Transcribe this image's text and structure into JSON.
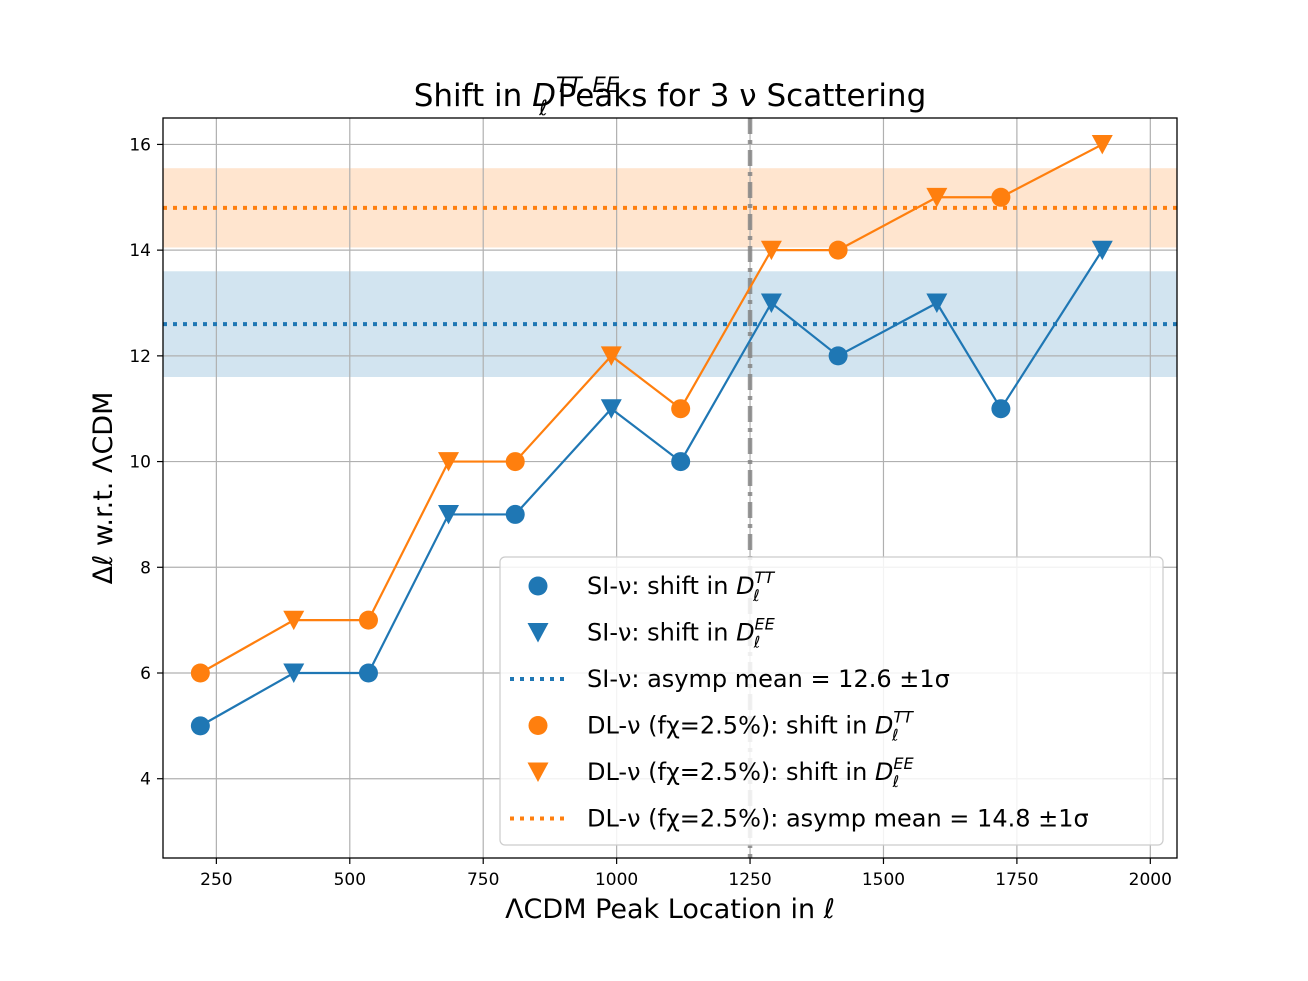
{
  "chart_data": {
    "type": "scatter",
    "title": "Shift in D_ℓ^{TT,EE} Peaks for 3 ν Scattering",
    "title_parts": {
      "pre": "Shift in ",
      "base": "D",
      "sup": "TT, EE",
      "sub": "ℓ",
      "post": " Peaks for 3 ν Scattering"
    },
    "xlabel": "ΛCDM Peak Location in ℓ",
    "ylabel": "Δℓ w.r.t. ΛCDM",
    "xlim": [
      150,
      2050
    ],
    "ylim": [
      2.5,
      16.5
    ],
    "xticks": [
      250,
      500,
      750,
      1000,
      1250,
      1500,
      1750,
      2000
    ],
    "yticks": [
      4,
      6,
      8,
      10,
      12,
      14,
      16
    ],
    "grid": true,
    "vline": {
      "x": 1250,
      "style": "dash-dot",
      "color": "#808080"
    },
    "colors": {
      "si": "#1f77b4",
      "dl": "#ff7f0e"
    },
    "series": [
      {
        "name": "SI-ν: shift in D_ℓ^TT",
        "group": "si",
        "marker": "circle",
        "x": [
          220,
          535,
          810,
          1120,
          1415,
          1720
        ],
        "y": [
          5,
          6,
          9,
          10,
          12,
          11
        ]
      },
      {
        "name": "SI-ν: shift in D_ℓ^EE",
        "group": "si",
        "marker": "triangle-down",
        "x": [
          395,
          685,
          990,
          1290,
          1600,
          1910
        ],
        "y": [
          6,
          9,
          11,
          13,
          13,
          14
        ]
      },
      {
        "name": "DL-ν (f_χ=2.5%): shift in D_ℓ^TT",
        "group": "dl",
        "marker": "circle",
        "x": [
          220,
          535,
          810,
          1120,
          1415,
          1720
        ],
        "y": [
          6,
          7,
          10,
          11,
          14,
          15
        ]
      },
      {
        "name": "DL-ν (f_χ=2.5%): shift in D_ℓ^EE",
        "group": "dl",
        "marker": "triangle-down",
        "x": [
          395,
          685,
          990,
          1290,
          1600,
          1910
        ],
        "y": [
          7,
          10,
          12,
          14,
          15,
          16
        ]
      }
    ],
    "bands": [
      {
        "name": "SI-ν: asymp mean = 12.6 ±1σ",
        "group": "si",
        "mean": 12.6,
        "low": 11.6,
        "high": 13.6
      },
      {
        "name": "DL-ν (f_χ=2.5%): asymp mean = 14.8 ±1σ",
        "group": "dl",
        "mean": 14.8,
        "low": 14.05,
        "high": 15.55
      }
    ],
    "legend": {
      "position": "lower-right",
      "entries": [
        {
          "marker": "circle",
          "group": "si",
          "pre": "SI-ν: shift in ",
          "base": "D",
          "sup": "TT",
          "sub": "ℓ"
        },
        {
          "marker": "triangle-down",
          "group": "si",
          "pre": "SI-ν: shift in ",
          "base": "D",
          "sup": "EE",
          "sub": "ℓ"
        },
        {
          "marker": "dotted-line",
          "group": "si",
          "pre": "SI-ν: asymp mean = 12.6 ±1σ"
        },
        {
          "marker": "circle",
          "group": "dl",
          "pre": "DL-ν (fχ=2.5%): shift in ",
          "base": "D",
          "sup": "TT",
          "sub": "ℓ"
        },
        {
          "marker": "triangle-down",
          "group": "dl",
          "pre": "DL-ν (fχ=2.5%): shift in ",
          "base": "D",
          "sup": "EE",
          "sub": "ℓ"
        },
        {
          "marker": "dotted-line",
          "group": "dl",
          "pre": "DL-ν (fχ=2.5%): asymp mean = 14.8 ±1σ"
        }
      ]
    }
  }
}
